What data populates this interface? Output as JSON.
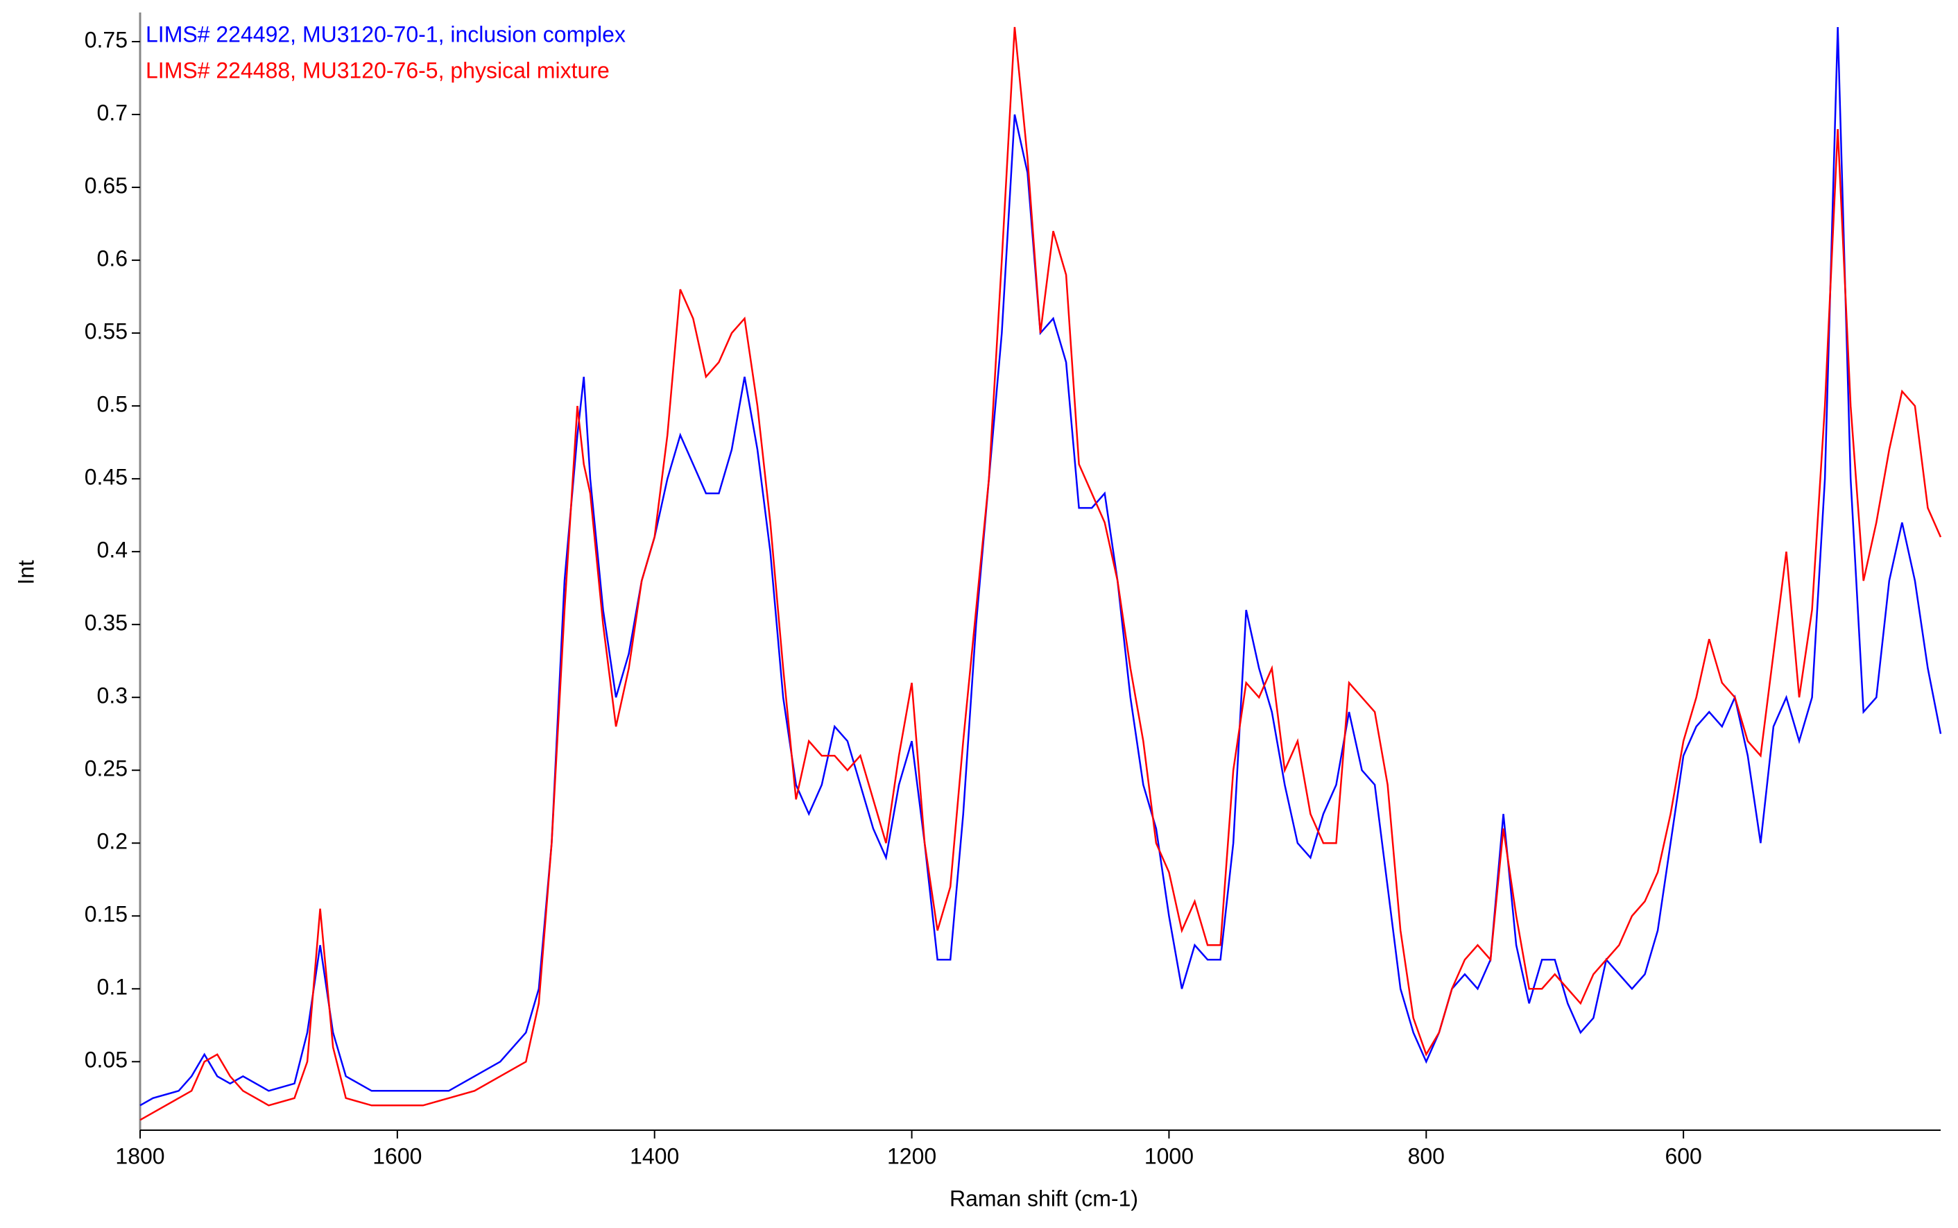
{
  "chart_data": {
    "type": "line",
    "xlabel": "Raman shift (cm-1)",
    "ylabel": "Int",
    "x": [
      1800,
      1790,
      1770,
      1760,
      1750,
      1740,
      1730,
      1720,
      1700,
      1680,
      1670,
      1660,
      1650,
      1640,
      1620,
      1600,
      1580,
      1560,
      1540,
      1520,
      1500,
      1490,
      1480,
      1470,
      1460,
      1455,
      1450,
      1440,
      1430,
      1420,
      1410,
      1400,
      1390,
      1380,
      1370,
      1360,
      1350,
      1340,
      1330,
      1320,
      1310,
      1300,
      1290,
      1280,
      1270,
      1260,
      1250,
      1240,
      1230,
      1220,
      1210,
      1200,
      1190,
      1180,
      1170,
      1160,
      1150,
      1140,
      1130,
      1120,
      1110,
      1100,
      1090,
      1080,
      1070,
      1060,
      1050,
      1040,
      1030,
      1020,
      1010,
      1000,
      990,
      980,
      970,
      960,
      950,
      940,
      930,
      920,
      910,
      900,
      890,
      880,
      870,
      860,
      850,
      840,
      830,
      820,
      810,
      800,
      790,
      780,
      770,
      760,
      750,
      740,
      730,
      720,
      710,
      700,
      690,
      680,
      670,
      660,
      650,
      640,
      630,
      620,
      610,
      600,
      590,
      580,
      570,
      560,
      550,
      540,
      530,
      520,
      510,
      500,
      490,
      480,
      470,
      460,
      450,
      440,
      430,
      420,
      410,
      400
    ],
    "series": [
      {
        "name": "LIMS# 224492, MU3120-70-1, inclusion complex",
        "color": "#0000ff",
        "values": [
          0.02,
          0.025,
          0.03,
          0.04,
          0.055,
          0.04,
          0.035,
          0.04,
          0.03,
          0.035,
          0.07,
          0.13,
          0.07,
          0.04,
          0.03,
          0.03,
          0.03,
          0.03,
          0.04,
          0.05,
          0.07,
          0.1,
          0.2,
          0.38,
          0.48,
          0.52,
          0.45,
          0.36,
          0.3,
          0.33,
          0.38,
          0.41,
          0.45,
          0.48,
          0.46,
          0.44,
          0.44,
          0.47,
          0.52,
          0.47,
          0.4,
          0.3,
          0.24,
          0.22,
          0.24,
          0.28,
          0.27,
          0.24,
          0.21,
          0.19,
          0.24,
          0.27,
          0.2,
          0.12,
          0.12,
          0.22,
          0.35,
          0.45,
          0.55,
          0.7,
          0.66,
          0.55,
          0.56,
          0.53,
          0.43,
          0.43,
          0.44,
          0.38,
          0.3,
          0.24,
          0.21,
          0.15,
          0.1,
          0.13,
          0.12,
          0.12,
          0.2,
          0.36,
          0.32,
          0.29,
          0.24,
          0.2,
          0.19,
          0.22,
          0.24,
          0.29,
          0.25,
          0.24,
          0.17,
          0.1,
          0.07,
          0.05,
          0.07,
          0.1,
          0.11,
          0.1,
          0.12,
          0.22,
          0.13,
          0.09,
          0.12,
          0.12,
          0.09,
          0.07,
          0.08,
          0.12,
          0.11,
          0.1,
          0.11,
          0.14,
          0.2,
          0.26,
          0.28,
          0.29,
          0.28,
          0.3,
          0.26,
          0.2,
          0.28,
          0.3,
          0.27,
          0.3,
          0.45,
          0.76,
          0.45,
          0.29,
          0.3,
          0.38,
          0.42,
          0.38,
          0.32,
          0.275
        ]
      },
      {
        "name": "LIMS# 224488, MU3120-76-5, physical mixture",
        "color": "#ff0000",
        "values": [
          0.01,
          0.015,
          0.025,
          0.03,
          0.05,
          0.055,
          0.04,
          0.03,
          0.02,
          0.025,
          0.05,
          0.155,
          0.06,
          0.025,
          0.02,
          0.02,
          0.02,
          0.025,
          0.03,
          0.04,
          0.05,
          0.09,
          0.2,
          0.36,
          0.5,
          0.46,
          0.44,
          0.35,
          0.28,
          0.32,
          0.38,
          0.41,
          0.48,
          0.58,
          0.56,
          0.52,
          0.53,
          0.55,
          0.56,
          0.5,
          0.42,
          0.32,
          0.23,
          0.27,
          0.26,
          0.26,
          0.25,
          0.26,
          0.23,
          0.2,
          0.26,
          0.31,
          0.2,
          0.14,
          0.17,
          0.27,
          0.36,
          0.45,
          0.6,
          0.76,
          0.67,
          0.55,
          0.62,
          0.59,
          0.46,
          0.44,
          0.42,
          0.38,
          0.32,
          0.27,
          0.2,
          0.18,
          0.14,
          0.16,
          0.13,
          0.13,
          0.25,
          0.31,
          0.3,
          0.32,
          0.25,
          0.27,
          0.22,
          0.2,
          0.2,
          0.31,
          0.3,
          0.29,
          0.24,
          0.14,
          0.08,
          0.055,
          0.07,
          0.1,
          0.12,
          0.13,
          0.12,
          0.21,
          0.15,
          0.1,
          0.1,
          0.11,
          0.1,
          0.09,
          0.11,
          0.12,
          0.13,
          0.15,
          0.16,
          0.18,
          0.22,
          0.27,
          0.3,
          0.34,
          0.31,
          0.3,
          0.27,
          0.26,
          0.33,
          0.4,
          0.3,
          0.36,
          0.5,
          0.69,
          0.5,
          0.38,
          0.42,
          0.47,
          0.51,
          0.5,
          0.43,
          0.41
        ]
      }
    ],
    "xlim": [
      1800,
      400
    ],
    "ylim": [
      0.003,
      0.77
    ],
    "xticks": [
      1800,
      1600,
      1400,
      1200,
      1000,
      800,
      600
    ],
    "yticks": [
      0.05,
      0.1,
      0.15,
      0.2,
      0.25,
      0.3,
      0.35,
      0.4,
      0.45,
      0.5,
      0.55,
      0.6,
      0.65,
      0.7,
      0.75
    ],
    "legend": "upper left"
  }
}
